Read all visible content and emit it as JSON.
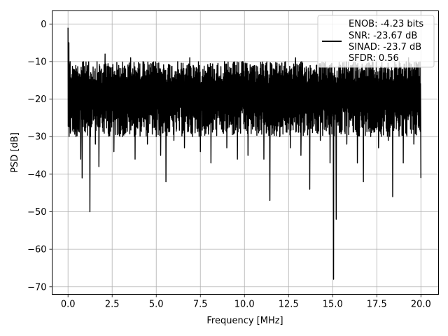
{
  "chart_data": {
    "type": "line",
    "title": "",
    "xlabel": "Frequency [MHz]",
    "ylabel": "PSD [dB]",
    "xlim": [
      -0.9,
      21
    ],
    "ylim": [
      -72,
      3.5
    ],
    "xticks": [
      0,
      2.5,
      5,
      7.5,
      10,
      12.5,
      15,
      17.5,
      20
    ],
    "xtick_labels": [
      "0.0",
      "2.5",
      "5.0",
      "7.5",
      "10.0",
      "12.5",
      "15.0",
      "17.5",
      "20.0"
    ],
    "yticks": [
      0,
      -10,
      -20,
      -30,
      -40,
      -50,
      -60,
      -70
    ],
    "ytick_labels": [
      "0",
      "−10",
      "−20",
      "−30",
      "−40",
      "−50",
      "−60",
      "−70"
    ],
    "grid": true,
    "legend_position": "top-right",
    "legend_entries": [
      "ENOB: -4.23 bits",
      "SNR: -23.67 dB",
      "SINAD: -23.7 dB",
      "SFDR: 0.56"
    ],
    "series": [
      {
        "color": "#000000",
        "x": [
          0,
          0.02,
          0.05,
          0.08,
          0.12,
          0.2,
          0.3,
          0.45,
          0.6,
          0.72,
          0.8,
          0.95,
          1.1,
          1.24,
          1.35,
          1.55,
          1.75,
          1.92,
          2.1,
          2.35,
          2.6,
          2.85,
          3.1,
          3.3,
          3.55,
          3.8,
          4.0,
          4.25,
          4.5,
          4.8,
          5.0,
          5.25,
          5.55,
          5.75,
          6.0,
          6.3,
          6.6,
          6.9,
          7.2,
          7.5,
          7.8,
          8.1,
          8.45,
          8.7,
          9.0,
          9.3,
          9.6,
          9.9,
          10.2,
          10.5,
          10.8,
          11.1,
          11.44,
          11.7,
          12.0,
          12.3,
          12.6,
          12.9,
          13.2,
          13.45,
          13.7,
          14.0,
          14.3,
          14.6,
          14.85,
          15.05,
          15.2,
          15.5,
          15.8,
          16.1,
          16.4,
          16.74,
          17.0,
          17.3,
          17.6,
          17.92,
          18.15,
          18.4,
          18.7,
          19.0,
          19.3,
          19.6,
          19.9,
          20.0
        ],
        "y": [
          -1,
          -14,
          -5,
          -20,
          -10,
          -25,
          -12,
          -30,
          -14,
          -36,
          -41,
          -20,
          -11,
          -50,
          -18,
          -32,
          -38,
          -20,
          -8,
          -28,
          -34,
          -12,
          -30,
          -24,
          -9,
          -36,
          -25,
          -10,
          -32,
          -14,
          -30,
          -35,
          -42,
          -12,
          -31,
          -17,
          -33,
          -9,
          -29,
          -34,
          -15,
          -37,
          -11,
          -28,
          -33,
          -14,
          -36,
          -10,
          -35,
          -22,
          -29,
          -36,
          -47,
          -12,
          -30,
          -16,
          -33,
          -9,
          -35,
          -23,
          -44,
          -15,
          -31,
          -12,
          -37,
          -68,
          -52,
          -16,
          -32,
          -11,
          -37,
          -42,
          -14,
          -28,
          -33,
          -13,
          -31,
          -46,
          -15,
          -37,
          -9,
          -32,
          -14,
          -41
        ]
      }
    ]
  }
}
